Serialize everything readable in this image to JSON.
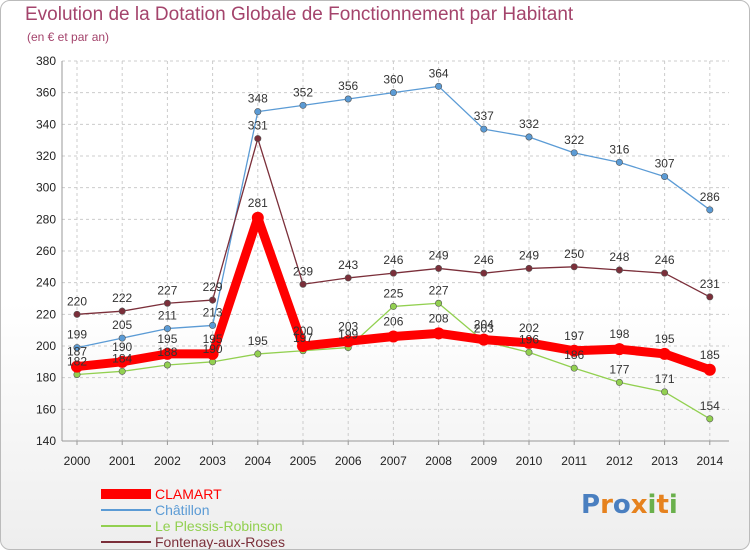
{
  "header": {
    "title": "Evolution de la Dotation Globale de Fonctionnement par Habitant",
    "subtitle": "(en € et par an)"
  },
  "colors": {
    "title": "#a4446c",
    "grid": "#cccccc",
    "axis": "#999999"
  },
  "chart_data": {
    "type": "line",
    "title": "Evolution de la Dotation Globale de Fonctionnement par Habitant",
    "subtitle": "(en € et par an)",
    "x": [
      "2000",
      "2001",
      "2002",
      "2003",
      "2004",
      "2005",
      "2006",
      "2007",
      "2008",
      "2009",
      "2010",
      "2011",
      "2012",
      "2013",
      "2014"
    ],
    "ylim": [
      140,
      380
    ],
    "yticks": [
      140,
      160,
      180,
      200,
      220,
      240,
      260,
      280,
      300,
      320,
      340,
      360,
      380
    ],
    "grid": true,
    "legend_position": "bottom-left",
    "series": [
      {
        "name": "Châtillon",
        "color": "#5b9bd5",
        "values": [
          199,
          205,
          211,
          213,
          348,
          352,
          356,
          360,
          364,
          337,
          332,
          322,
          316,
          307,
          286
        ]
      },
      {
        "name": "Le Plessis-Robinson",
        "color": "#92d050",
        "values": [
          182,
          184,
          188,
          190,
          195,
          197,
          199,
          225,
          227,
          203,
          196,
          186,
          177,
          171,
          154
        ]
      },
      {
        "name": "Fontenay-aux-Roses",
        "color": "#7b2f3a",
        "values": [
          220,
          222,
          227,
          229,
          331,
          239,
          243,
          246,
          249,
          246,
          249,
          250,
          248,
          246,
          231
        ]
      },
      {
        "name": "CLAMART",
        "color": "#ff0000",
        "values": [
          187,
          190,
          195,
          195,
          281,
          200,
          203,
          206,
          208,
          204,
          202,
          197,
          198,
          195,
          185
        ]
      }
    ]
  },
  "legend": {
    "items": [
      {
        "label": "CLAMART",
        "color": "#ff0000"
      },
      {
        "label": "Châtillon",
        "color": "#5b9bd5"
      },
      {
        "label": "Le Plessis-Robinson",
        "color": "#92d050"
      },
      {
        "label": "Fontenay-aux-Roses",
        "color": "#7b2f3a"
      }
    ]
  },
  "logo": {
    "letters": [
      {
        "ch": "P",
        "color": "#4a7fc0"
      },
      {
        "ch": "r",
        "color": "#e6821e"
      },
      {
        "ch": "o",
        "color": "#4a7fc0"
      },
      {
        "ch": "x",
        "color": "#e6821e"
      },
      {
        "ch": "i",
        "color": "#6ab04c"
      },
      {
        "ch": "t",
        "color": "#e6821e"
      },
      {
        "ch": "i",
        "color": "#6ab04c"
      }
    ]
  }
}
